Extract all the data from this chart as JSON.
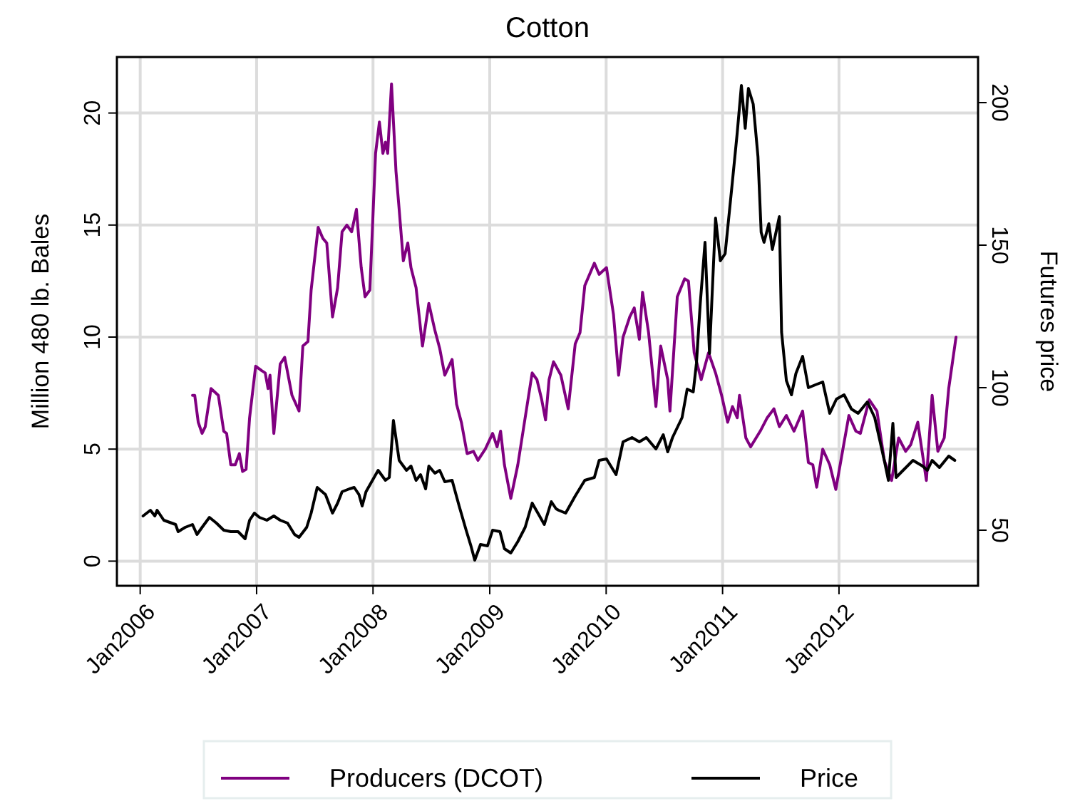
{
  "chart_data": {
    "type": "line",
    "title": "Cotton",
    "ylabel": "Million 480 lb. Bales",
    "y2label": "Futures price",
    "xlim": [
      "2005-10-20",
      "2013-03-12"
    ],
    "xticks": [
      {
        "value": "2006-01-01",
        "label": "Jan2006"
      },
      {
        "value": "2007-01-01",
        "label": "Jan2007"
      },
      {
        "value": "2008-01-01",
        "label": "Jan2008"
      },
      {
        "value": "2009-01-01",
        "label": "Jan2009"
      },
      {
        "value": "2010-01-01",
        "label": "Jan2010"
      },
      {
        "value": "2011-01-01",
        "label": "Jan2011"
      },
      {
        "value": "2012-01-01",
        "label": "Jan2012"
      }
    ],
    "ylim": [
      -1.1,
      22.5
    ],
    "yticks": [
      0,
      5,
      10,
      15,
      20
    ],
    "y2lim": [
      30.5,
      216
    ],
    "y2ticks": [
      50,
      100,
      150,
      200
    ],
    "grid": true,
    "legend": "bottom",
    "line_style": "solid",
    "series": [
      {
        "name": "Producers (DCOT)",
        "color": "#800080",
        "axis": "y",
        "x": [
          "2006-06-14",
          "2006-06-21",
          "2006-07-02",
          "2006-07-14",
          "2006-07-24",
          "2006-08-11",
          "2006-09-03",
          "2006-09-20",
          "2006-09-29",
          "2006-10-12",
          "2006-10-26",
          "2006-11-08",
          "2006-11-18",
          "2006-11-29",
          "2006-12-10",
          "2006-12-29",
          "2007-01-17",
          "2007-01-28",
          "2007-02-06",
          "2007-02-12",
          "2007-02-24",
          "2007-03-16",
          "2007-03-30",
          "2007-04-22",
          "2007-05-14",
          "2007-05-26",
          "2007-06-11",
          "2007-06-21",
          "2007-07-13",
          "2007-07-28",
          "2007-08-09",
          "2007-08-27",
          "2007-09-12",
          "2007-09-26",
          "2007-10-11",
          "2007-10-26",
          "2007-11-10",
          "2007-11-25",
          "2007-12-07",
          "2007-12-22",
          "2008-01-09",
          "2008-01-21",
          "2008-02-01",
          "2008-02-09",
          "2008-02-16",
          "2008-02-28",
          "2008-03-13",
          "2008-03-23",
          "2008-04-05",
          "2008-04-19",
          "2008-04-29",
          "2008-05-15",
          "2008-06-04",
          "2008-06-24",
          "2008-07-13",
          "2008-07-28",
          "2008-08-13",
          "2008-09-05",
          "2008-09-19",
          "2008-10-04",
          "2008-10-22",
          "2008-11-11",
          "2008-11-25",
          "2008-12-18",
          "2009-01-10",
          "2009-01-24",
          "2009-02-04",
          "2009-02-16",
          "2009-03-08",
          "2009-03-30",
          "2009-04-22",
          "2009-05-14",
          "2009-05-29",
          "2009-06-13",
          "2009-06-25",
          "2009-07-06",
          "2009-07-20",
          "2009-08-12",
          "2009-09-04",
          "2009-09-26",
          "2009-10-11",
          "2009-10-26",
          "2009-11-25",
          "2009-12-10",
          "2010-01-02",
          "2010-01-24",
          "2010-02-09",
          "2010-02-23",
          "2010-03-16",
          "2010-03-30",
          "2010-04-15",
          "2010-04-25",
          "2010-05-14",
          "2010-06-06",
          "2010-06-21",
          "2010-07-13",
          "2010-07-20",
          "2010-08-12",
          "2010-09-04",
          "2010-09-16",
          "2010-10-04",
          "2010-10-26",
          "2010-11-18",
          "2010-12-10",
          "2010-12-29",
          "2011-01-17",
          "2011-02-01",
          "2011-02-16",
          "2011-02-23",
          "2011-03-15",
          "2011-03-30",
          "2011-04-29",
          "2011-05-21",
          "2011-06-11",
          "2011-06-28",
          "2011-07-20",
          "2011-08-13",
          "2011-09-09",
          "2011-09-27",
          "2011-10-11",
          "2011-10-23",
          "2011-11-11",
          "2011-12-03",
          "2011-12-22",
          "2012-01-17",
          "2012-02-01",
          "2012-02-23",
          "2012-03-08",
          "2012-04-05",
          "2012-04-29",
          "2012-05-22",
          "2012-06-14",
          "2012-07-06",
          "2012-07-28",
          "2012-08-13",
          "2012-09-04",
          "2012-10-01",
          "2012-10-19",
          "2012-11-06",
          "2012-11-26",
          "2012-12-10",
          "2013-01-02"
        ],
        "values": [
          7.4,
          7.4,
          6.2,
          5.7,
          6.0,
          7.7,
          7.4,
          5.8,
          5.7,
          4.3,
          4.3,
          4.8,
          4.0,
          4.1,
          6.4,
          8.7,
          8.5,
          8.4,
          7.7,
          8.3,
          5.7,
          8.8,
          9.1,
          7.4,
          6.7,
          9.6,
          9.8,
          12.1,
          14.9,
          14.4,
          14.2,
          10.9,
          12.2,
          14.7,
          15.0,
          14.7,
          15.7,
          13.1,
          11.8,
          12.1,
          18.2,
          19.6,
          18.2,
          18.7,
          18.2,
          21.3,
          17.4,
          15.7,
          13.4,
          14.2,
          13.1,
          12.2,
          9.6,
          11.5,
          10.3,
          9.5,
          8.3,
          9.0,
          7.0,
          6.2,
          4.8,
          4.9,
          4.5,
          5.0,
          5.7,
          5.1,
          5.8,
          4.3,
          2.8,
          4.3,
          6.4,
          8.4,
          8.1,
          7.2,
          6.3,
          8.1,
          8.9,
          8.3,
          6.8,
          9.7,
          10.2,
          12.3,
          13.3,
          12.8,
          13.1,
          11.0,
          8.3,
          10.0,
          10.9,
          11.3,
          9.9,
          12.0,
          10.2,
          6.9,
          9.6,
          8.1,
          6.7,
          11.8,
          12.6,
          12.5,
          9.3,
          8.1,
          9.3,
          8.4,
          7.4,
          6.2,
          6.9,
          6.4,
          7.4,
          5.5,
          5.1,
          5.8,
          6.4,
          6.8,
          6.0,
          6.5,
          5.8,
          6.7,
          4.4,
          4.3,
          3.3,
          5.0,
          4.3,
          3.2,
          5.3,
          6.5,
          5.8,
          5.7,
          7.2,
          6.7,
          4.5,
          3.6,
          5.5,
          4.9,
          5.2,
          6.2,
          3.6,
          7.4,
          4.9,
          5.5,
          7.7,
          10.0
        ]
      },
      {
        "name": "Price",
        "color": "#000000",
        "axis": "y2",
        "x": [
          "2006-01-10",
          "2006-02-02",
          "2006-02-16",
          "2006-02-23",
          "2006-03-16",
          "2006-04-22",
          "2006-04-30",
          "2006-05-22",
          "2006-06-14",
          "2006-06-28",
          "2006-07-14",
          "2006-08-06",
          "2006-08-28",
          "2006-09-20",
          "2006-10-12",
          "2006-11-04",
          "2006-11-26",
          "2006-12-10",
          "2006-12-25",
          "2007-01-10",
          "2007-02-02",
          "2007-02-24",
          "2007-03-16",
          "2007-04-08",
          "2007-04-30",
          "2007-05-14",
          "2007-06-07",
          "2007-06-21",
          "2007-07-10",
          "2007-08-05",
          "2007-08-27",
          "2007-09-12",
          "2007-09-26",
          "2007-10-19",
          "2007-11-03",
          "2007-11-18",
          "2007-11-28",
          "2007-12-10",
          "2008-01-17",
          "2008-02-09",
          "2008-02-21",
          "2008-03-05",
          "2008-03-23",
          "2008-04-15",
          "2008-04-29",
          "2008-05-15",
          "2008-05-29",
          "2008-06-14",
          "2008-06-24",
          "2008-07-13",
          "2008-07-28",
          "2008-08-13",
          "2008-09-05",
          "2008-09-27",
          "2008-10-19",
          "2008-11-03",
          "2008-11-15",
          "2008-12-03",
          "2008-12-25",
          "2009-01-10",
          "2009-02-02",
          "2009-02-16",
          "2009-03-08",
          "2009-03-30",
          "2009-04-22",
          "2009-05-14",
          "2009-06-06",
          "2009-06-21",
          "2009-07-13",
          "2009-07-28",
          "2009-08-05",
          "2009-08-27",
          "2009-09-26",
          "2009-10-26",
          "2009-11-25",
          "2009-12-10",
          "2010-01-02",
          "2010-02-01",
          "2010-02-23",
          "2010-03-23",
          "2010-04-15",
          "2010-05-07",
          "2010-06-06",
          "2010-06-29",
          "2010-07-13",
          "2010-07-28",
          "2010-08-27",
          "2010-09-12",
          "2010-10-01",
          "2010-10-11",
          "2010-10-23",
          "2010-11-07",
          "2010-11-21",
          "2010-12-10",
          "2010-12-25",
          "2011-01-09",
          "2011-02-01",
          "2011-02-16",
          "2011-03-01",
          "2011-03-13",
          "2011-03-23",
          "2011-04-07",
          "2011-04-22",
          "2011-05-02",
          "2011-05-11",
          "2011-05-26",
          "2011-06-06",
          "2011-06-28",
          "2011-07-05",
          "2011-07-20",
          "2011-08-05",
          "2011-08-19",
          "2011-09-09",
          "2011-09-27",
          "2011-10-19",
          "2011-11-11",
          "2011-12-03",
          "2011-12-24",
          "2012-01-17",
          "2012-02-09",
          "2012-03-01",
          "2012-03-30",
          "2012-04-22",
          "2012-05-22",
          "2012-06-04",
          "2012-06-18",
          "2012-06-28",
          "2012-07-20",
          "2012-08-20",
          "2012-09-19",
          "2012-10-04",
          "2012-10-19",
          "2012-11-11",
          "2012-12-10",
          "2012-12-29"
        ],
        "values": [
          55,
          57,
          55,
          57,
          53.5,
          52,
          49.5,
          51,
          52,
          48.5,
          51,
          54.5,
          52.5,
          50,
          49.5,
          49.5,
          47,
          53.5,
          56,
          54.5,
          53.5,
          55,
          53.5,
          52.5,
          48.5,
          47.5,
          51,
          56,
          65,
          62.5,
          56,
          59.5,
          63.5,
          64.5,
          65,
          62.5,
          58.5,
          63.5,
          71,
          67.5,
          68.5,
          88.5,
          74.5,
          71,
          72.5,
          67.5,
          69.5,
          64.5,
          72.5,
          70,
          71,
          67,
          67.5,
          58.5,
          50,
          44.5,
          39.5,
          45,
          44.5,
          50,
          49.5,
          43.5,
          42,
          46,
          51,
          59.5,
          55,
          52,
          60,
          57.5,
          57,
          56,
          62,
          67.5,
          68.5,
          74.5,
          75,
          69.5,
          81,
          82.5,
          81,
          82.5,
          78.5,
          83.5,
          77.5,
          82.5,
          89.5,
          99.5,
          98.5,
          108.5,
          129.5,
          151,
          112,
          159.5,
          144.5,
          147,
          172.5,
          189.5,
          206,
          191,
          205,
          199.5,
          181,
          154.5,
          151,
          157.5,
          148.5,
          160,
          119.5,
          102.5,
          97.5,
          105,
          111,
          100,
          101,
          102,
          91,
          96,
          97.5,
          92.5,
          91,
          95,
          89.5,
          74.5,
          67.5,
          87.5,
          68.5,
          71,
          74.5,
          72.5,
          71,
          74.5,
          72,
          76,
          74.5
        ]
      }
    ]
  }
}
